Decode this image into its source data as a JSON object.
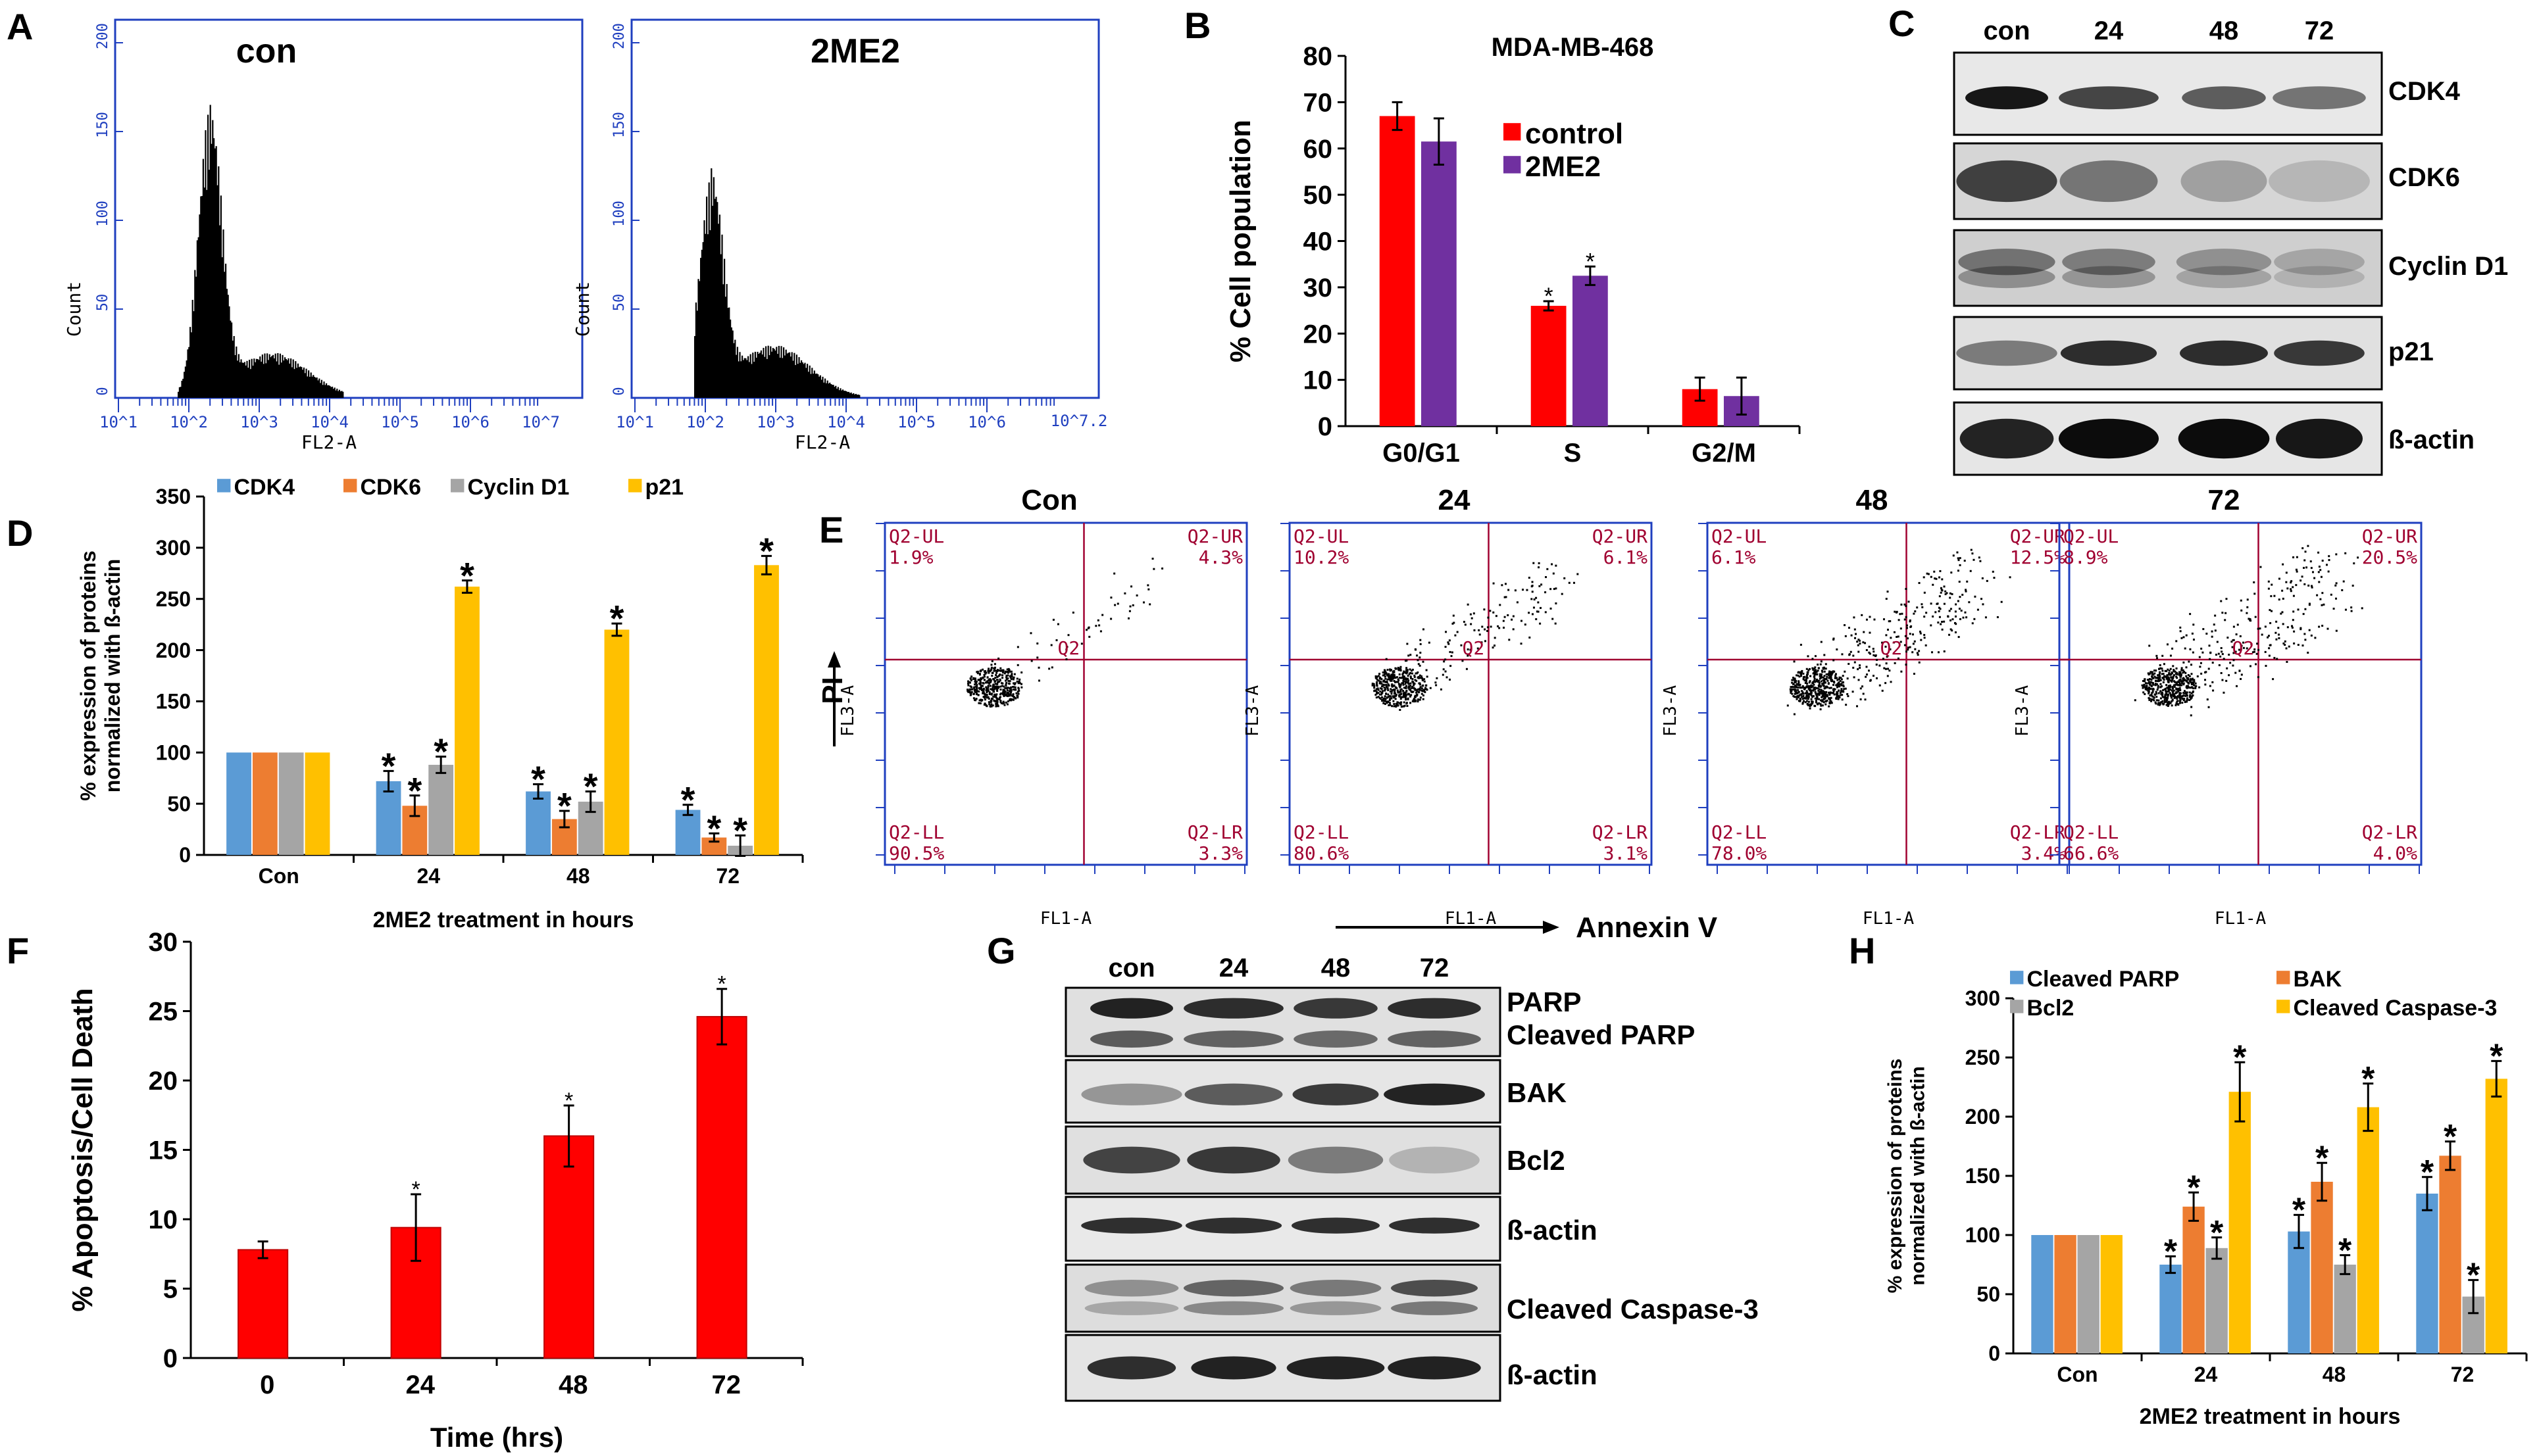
{
  "panels": {
    "A": {
      "letter": "A",
      "ytick_labels": [
        "0",
        "50",
        "100",
        "150",
        "200"
      ],
      "xtick_labels": [
        "10^1",
        "10^2",
        "10^3",
        "10^4",
        "10^5",
        "10^6",
        "10^7"
      ],
      "ylabel": "Count",
      "xlabel": "FL2-A",
      "hist_con_label": "con",
      "hist_tr_label": "2ME2",
      "xmax_right_label": "10^7.2"
    },
    "C": {
      "letter": "C",
      "lanes": [
        "con",
        "24",
        "48",
        "72"
      ],
      "bands": [
        "CDK4",
        "CDK6",
        "Cyclin D1",
        "p21",
        "ß-actin"
      ]
    },
    "E": {
      "letter": "E",
      "plots": [
        {
          "title": "Con",
          "ul": "1.9%",
          "ur": "4.3%",
          "ll": "90.5%",
          "lr": "3.3%"
        },
        {
          "title": "24",
          "ul": "10.2%",
          "ur": "6.1%",
          "ll": "80.6%",
          "lr": "3.1%"
        },
        {
          "title": "48",
          "ul": "6.1%",
          "ur": "12.5%",
          "ll": "78.0%",
          "lr": "3.4%"
        },
        {
          "title": "72",
          "ul": "8.9%",
          "ur": "20.5%",
          "ll": "66.6%",
          "lr": "4.0%"
        }
      ],
      "quadrant_labels": {
        "ul": "Q2-UL",
        "ur": "Q2-UR",
        "ll": "Q2-LL",
        "lr": "Q2-LR",
        "center": "Q2"
      },
      "xaxis_label": "FL1-A",
      "yaxis_label": "FL3-A",
      "pi_label": "PI",
      "annexin_label": "Annexin V"
    },
    "G": {
      "letter": "G",
      "lanes": [
        "con",
        "24",
        "48",
        "72"
      ],
      "bands": [
        "PARP",
        "Cleaved PARP",
        "BAK",
        "Bcl2",
        "ß-actin",
        "Cleaved Caspase-3",
        "ß-actin"
      ]
    }
  },
  "chart_data": [
    {
      "id": "B",
      "letter": "B",
      "type": "bar",
      "title": "MDA-MB-468",
      "ylabel": "% Cell population",
      "xlabel": "",
      "ylim": [
        0,
        80
      ],
      "yticks": [
        "0",
        "10",
        "20",
        "30",
        "40",
        "50",
        "60",
        "70",
        "80"
      ],
      "categories": [
        "G0/G1",
        "S",
        "G2/M"
      ],
      "series": [
        {
          "name": "control",
          "color": "#ff0000",
          "values": [
            67,
            26,
            8
          ],
          "errors": [
            3,
            1,
            2.5
          ],
          "sig": [
            "",
            "*",
            ""
          ]
        },
        {
          "name": "2ME2",
          "color": "#7030a0",
          "values": [
            61.5,
            32.5,
            6.5
          ],
          "errors": [
            5,
            2,
            4
          ],
          "sig": [
            "",
            "*",
            ""
          ]
        }
      ]
    },
    {
      "id": "D",
      "letter": "D",
      "type": "bar",
      "title": "",
      "ylabel": "% expression of proteins normalized with ß-actin",
      "xlabel": "2ME2 treatment in hours",
      "ylim": [
        0,
        350
      ],
      "yticks": [
        "0",
        "50",
        "100",
        "150",
        "200",
        "250",
        "300",
        "350"
      ],
      "categories": [
        "Con",
        "24",
        "48",
        "72"
      ],
      "series": [
        {
          "name": "CDK4",
          "color": "#5b9bd5",
          "values": [
            100,
            72,
            62,
            44
          ],
          "errors": [
            0,
            10,
            7,
            5
          ],
          "sig": [
            "",
            "*",
            "*",
            "*"
          ]
        },
        {
          "name": "CDK6",
          "color": "#ed7d31",
          "values": [
            100,
            48,
            35,
            17
          ],
          "errors": [
            0,
            10,
            8,
            4
          ],
          "sig": [
            "",
            "*",
            "*",
            "*"
          ]
        },
        {
          "name": "Cyclin D1",
          "color": "#a5a5a5",
          "values": [
            100,
            88,
            52,
            9
          ],
          "errors": [
            0,
            8,
            10,
            10
          ],
          "sig": [
            "",
            "*",
            "*",
            "*"
          ]
        },
        {
          "name": "p21",
          "color": "#ffc000",
          "values": [
            100,
            262,
            220,
            283
          ],
          "errors": [
            0,
            6,
            6,
            9
          ],
          "sig": [
            "",
            "*",
            "*",
            "*"
          ]
        }
      ]
    },
    {
      "id": "F",
      "letter": "F",
      "type": "bar",
      "title": "",
      "ylabel": "% Apoptosis/Cell Death",
      "xlabel": "Time (hrs)",
      "ylim": [
        0,
        30
      ],
      "yticks": [
        "0",
        "5",
        "10",
        "15",
        "20",
        "25",
        "30"
      ],
      "categories": [
        "0",
        "24",
        "48",
        "72"
      ],
      "series": [
        {
          "name": "Apoptosis",
          "color": "#ff0000",
          "values": [
            7.8,
            9.4,
            16,
            24.6
          ],
          "errors": [
            0.6,
            2.4,
            2.2,
            2
          ],
          "sig": [
            "",
            "*",
            "*",
            "*"
          ]
        }
      ]
    },
    {
      "id": "H",
      "letter": "H",
      "type": "bar",
      "title": "",
      "ylabel": "% expression of proteins normalized with ß-actin",
      "xlabel": "2ME2 treatment in hours",
      "ylim": [
        0,
        300
      ],
      "yticks": [
        "0",
        "50",
        "100",
        "150",
        "200",
        "250",
        "300"
      ],
      "categories": [
        "Con",
        "24",
        "48",
        "72"
      ],
      "series": [
        {
          "name": "Cleaved PARP",
          "color": "#5b9bd5",
          "values": [
            100,
            75,
            103,
            135
          ],
          "errors": [
            0,
            7,
            14,
            14
          ],
          "sig": [
            "",
            "*",
            "*",
            "*"
          ]
        },
        {
          "name": "BAK",
          "color": "#ed7d31",
          "values": [
            100,
            124,
            145,
            167
          ],
          "errors": [
            0,
            12,
            16,
            12
          ],
          "sig": [
            "",
            "*",
            "*",
            "*"
          ]
        },
        {
          "name": "Bcl2",
          "color": "#a5a5a5",
          "values": [
            100,
            89,
            75,
            48
          ],
          "errors": [
            0,
            9,
            8,
            14
          ],
          "sig": [
            "",
            "*",
            "*",
            "*"
          ]
        },
        {
          "name": "Cleaved Caspase-3",
          "color": "#ffc000",
          "values": [
            100,
            221,
            208,
            232
          ],
          "errors": [
            0,
            25,
            20,
            15
          ],
          "sig": [
            "",
            "*",
            "*",
            "*"
          ]
        }
      ]
    }
  ]
}
